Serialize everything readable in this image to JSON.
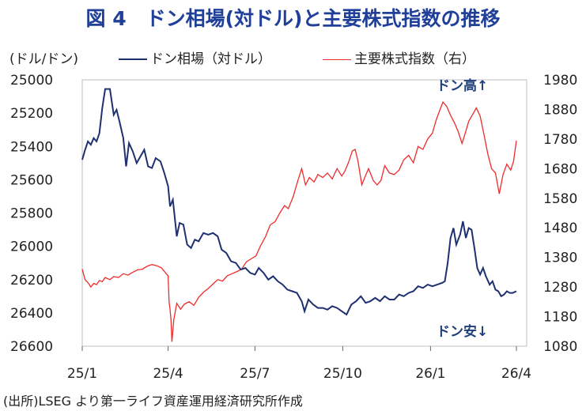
{
  "title": "図 4　ドン相場(対ドル)と主要株式指数の推移",
  "source": "(出所)LSEG より第一ライフ資産運用経済研究所作成",
  "chart_data": {
    "type": "line",
    "left_unit": "(ドル/ドン)",
    "x_ticks": [
      "25/1",
      "25/4",
      "25/7",
      "25/10",
      "26/1",
      "26/4"
    ],
    "left_axis": {
      "ticks": [
        25000,
        25200,
        25400,
        25600,
        25800,
        26000,
        26200,
        26400,
        26600
      ],
      "range": [
        25000,
        26600
      ],
      "inverted": true
    },
    "right_axis": {
      "ticks": [
        1980,
        1880,
        1780,
        1680,
        1580,
        1480,
        1380,
        1280,
        1180,
        1080
      ],
      "range": [
        1080,
        1980
      ]
    },
    "annotations": {
      "top": "ドン高↑",
      "bottom": "ドン安↓"
    },
    "colors": {
      "dong": "#1f3070",
      "index": "#ee2b2b"
    },
    "series": [
      {
        "name": "ドン相場（対ドル）",
        "axis": "left",
        "points": [
          [
            "2025-01-01",
            25480
          ],
          [
            "2025-01-04",
            25420
          ],
          [
            "2025-01-07",
            25370
          ],
          [
            "2025-01-10",
            25390
          ],
          [
            "2025-01-13",
            25350
          ],
          [
            "2025-01-16",
            25370
          ],
          [
            "2025-01-19",
            25320
          ],
          [
            "2025-01-22",
            25170
          ],
          [
            "2025-01-25",
            25055
          ],
          [
            "2025-01-30",
            25055
          ],
          [
            "2025-02-03",
            25210
          ],
          [
            "2025-02-06",
            25180
          ],
          [
            "2025-02-09",
            25250
          ],
          [
            "2025-02-13",
            25350
          ],
          [
            "2025-02-16",
            25520
          ],
          [
            "2025-02-19",
            25380
          ],
          [
            "2025-02-23",
            25430
          ],
          [
            "2025-02-27",
            25500
          ],
          [
            "2025-03-03",
            25460
          ],
          [
            "2025-03-07",
            25420
          ],
          [
            "2025-03-11",
            25520
          ],
          [
            "2025-03-15",
            25530
          ],
          [
            "2025-03-19",
            25470
          ],
          [
            "2025-03-24",
            25490
          ],
          [
            "2025-03-28",
            25560
          ],
          [
            "2025-04-01",
            25640
          ],
          [
            "2025-04-03",
            25760
          ],
          [
            "2025-04-06",
            25720
          ],
          [
            "2025-04-10",
            25940
          ],
          [
            "2025-04-13",
            25860
          ],
          [
            "2025-04-17",
            25870
          ],
          [
            "2025-04-21",
            25990
          ],
          [
            "2025-04-25",
            26010
          ],
          [
            "2025-04-29",
            25960
          ],
          [
            "2025-05-03",
            25970
          ],
          [
            "2025-05-08",
            25920
          ],
          [
            "2025-05-13",
            25930
          ],
          [
            "2025-05-18",
            25920
          ],
          [
            "2025-05-23",
            25940
          ],
          [
            "2025-05-27",
            26020
          ],
          [
            "2025-06-01",
            26040
          ],
          [
            "2025-06-06",
            26090
          ],
          [
            "2025-06-11",
            26100
          ],
          [
            "2025-06-16",
            26140
          ],
          [
            "2025-06-21",
            26130
          ],
          [
            "2025-06-26",
            26160
          ],
          [
            "2025-07-01",
            26170
          ],
          [
            "2025-07-05",
            26130
          ],
          [
            "2025-07-10",
            26160
          ],
          [
            "2025-07-15",
            26200
          ],
          [
            "2025-07-20",
            26180
          ],
          [
            "2025-07-25",
            26210
          ],
          [
            "2025-07-30",
            26230
          ],
          [
            "2025-08-04",
            26260
          ],
          [
            "2025-08-09",
            26270
          ],
          [
            "2025-08-14",
            26280
          ],
          [
            "2025-08-19",
            26330
          ],
          [
            "2025-08-22",
            26390
          ],
          [
            "2025-08-26",
            26320
          ],
          [
            "2025-08-31",
            26350
          ],
          [
            "2025-09-05",
            26370
          ],
          [
            "2025-09-10",
            26370
          ],
          [
            "2025-09-15",
            26380
          ],
          [
            "2025-09-20",
            26360
          ],
          [
            "2025-09-25",
            26370
          ],
          [
            "2025-09-30",
            26390
          ],
          [
            "2025-10-05",
            26410
          ],
          [
            "2025-10-10",
            26350
          ],
          [
            "2025-10-15",
            26330
          ],
          [
            "2025-10-20",
            26300
          ],
          [
            "2025-10-25",
            26340
          ],
          [
            "2025-10-30",
            26330
          ],
          [
            "2025-11-04",
            26310
          ],
          [
            "2025-11-09",
            26330
          ],
          [
            "2025-11-14",
            26300
          ],
          [
            "2025-11-19",
            26320
          ],
          [
            "2025-11-24",
            26320
          ],
          [
            "2025-11-29",
            26290
          ],
          [
            "2025-12-04",
            26300
          ],
          [
            "2025-12-09",
            26280
          ],
          [
            "2025-12-14",
            26270
          ],
          [
            "2025-12-19",
            26240
          ],
          [
            "2025-12-24",
            26250
          ],
          [
            "2025-12-29",
            26230
          ],
          [
            "2026-01-03",
            26240
          ],
          [
            "2026-01-08",
            26230
          ],
          [
            "2026-01-13",
            26220
          ],
          [
            "2026-01-16",
            26210
          ],
          [
            "2026-01-19",
            26100
          ],
          [
            "2026-01-22",
            25950
          ],
          [
            "2026-01-25",
            25890
          ],
          [
            "2026-01-28",
            25990
          ],
          [
            "2026-02-01",
            25930
          ],
          [
            "2026-02-04",
            25850
          ],
          [
            "2026-02-07",
            25950
          ],
          [
            "2026-02-10",
            25890
          ],
          [
            "2026-02-13",
            25900
          ],
          [
            "2026-02-16",
            26010
          ],
          [
            "2026-02-19",
            26130
          ],
          [
            "2026-02-22",
            26170
          ],
          [
            "2026-02-25",
            26130
          ],
          [
            "2026-02-28",
            26180
          ],
          [
            "2026-03-04",
            26230
          ],
          [
            "2026-03-07",
            26210
          ],
          [
            "2026-03-10",
            26260
          ],
          [
            "2026-03-13",
            26270
          ],
          [
            "2026-03-16",
            26300
          ],
          [
            "2026-03-19",
            26290
          ],
          [
            "2026-03-22",
            26270
          ],
          [
            "2026-03-25",
            26280
          ],
          [
            "2026-03-28",
            26280
          ],
          [
            "2026-04-01",
            26270
          ]
        ]
      },
      {
        "name": "主要株式指数（右）",
        "axis": "right",
        "points": [
          [
            "2025-01-01",
            1340
          ],
          [
            "2025-01-04",
            1305
          ],
          [
            "2025-01-07",
            1295
          ],
          [
            "2025-01-10",
            1280
          ],
          [
            "2025-01-13",
            1292
          ],
          [
            "2025-01-16",
            1288
          ],
          [
            "2025-01-19",
            1302
          ],
          [
            "2025-01-22",
            1298
          ],
          [
            "2025-01-25",
            1312
          ],
          [
            "2025-01-30",
            1305
          ],
          [
            "2025-02-03",
            1315
          ],
          [
            "2025-02-08",
            1312
          ],
          [
            "2025-02-13",
            1325
          ],
          [
            "2025-02-18",
            1320
          ],
          [
            "2025-02-23",
            1330
          ],
          [
            "2025-02-28",
            1338
          ],
          [
            "2025-03-05",
            1340
          ],
          [
            "2025-03-10",
            1350
          ],
          [
            "2025-03-15",
            1356
          ],
          [
            "2025-03-20",
            1352
          ],
          [
            "2025-03-25",
            1345
          ],
          [
            "2025-03-30",
            1325
          ],
          [
            "2025-04-01",
            1318
          ],
          [
            "2025-04-02",
            1230
          ],
          [
            "2025-04-03",
            1205
          ],
          [
            "2025-04-04",
            1170
          ],
          [
            "2025-04-05",
            1095
          ],
          [
            "2025-04-07",
            1170
          ],
          [
            "2025-04-10",
            1225
          ],
          [
            "2025-04-14",
            1205
          ],
          [
            "2025-04-18",
            1222
          ],
          [
            "2025-04-23",
            1230
          ],
          [
            "2025-04-28",
            1218
          ],
          [
            "2025-05-03",
            1245
          ],
          [
            "2025-05-08",
            1262
          ],
          [
            "2025-05-13",
            1275
          ],
          [
            "2025-05-18",
            1290
          ],
          [
            "2025-05-23",
            1305
          ],
          [
            "2025-05-28",
            1300
          ],
          [
            "2025-06-02",
            1318
          ],
          [
            "2025-06-07",
            1325
          ],
          [
            "2025-06-12",
            1332
          ],
          [
            "2025-06-17",
            1340
          ],
          [
            "2025-06-22",
            1365
          ],
          [
            "2025-06-27",
            1375
          ],
          [
            "2025-07-02",
            1385
          ],
          [
            "2025-07-07",
            1420
          ],
          [
            "2025-07-12",
            1450
          ],
          [
            "2025-07-17",
            1490
          ],
          [
            "2025-07-22",
            1500
          ],
          [
            "2025-07-27",
            1530
          ],
          [
            "2025-08-01",
            1555
          ],
          [
            "2025-08-05",
            1545
          ],
          [
            "2025-08-10",
            1585
          ],
          [
            "2025-08-15",
            1640
          ],
          [
            "2025-08-19",
            1680
          ],
          [
            "2025-08-23",
            1625
          ],
          [
            "2025-08-27",
            1650
          ],
          [
            "2025-09-01",
            1635
          ],
          [
            "2025-09-05",
            1660
          ],
          [
            "2025-09-10",
            1650
          ],
          [
            "2025-09-15",
            1665
          ],
          [
            "2025-09-20",
            1645
          ],
          [
            "2025-09-25",
            1680
          ],
          [
            "2025-09-30",
            1655
          ],
          [
            "2025-10-03",
            1670
          ],
          [
            "2025-10-07",
            1700
          ],
          [
            "2025-10-11",
            1740
          ],
          [
            "2025-10-14",
            1745
          ],
          [
            "2025-10-17",
            1705
          ],
          [
            "2025-10-21",
            1625
          ],
          [
            "2025-10-24",
            1650
          ],
          [
            "2025-10-28",
            1680
          ],
          [
            "2025-11-02",
            1640
          ],
          [
            "2025-11-06",
            1625
          ],
          [
            "2025-11-10",
            1640
          ],
          [
            "2025-11-14",
            1690
          ],
          [
            "2025-11-19",
            1665
          ],
          [
            "2025-11-24",
            1660
          ],
          [
            "2025-11-29",
            1675
          ],
          [
            "2025-12-04",
            1710
          ],
          [
            "2025-12-09",
            1725
          ],
          [
            "2025-12-14",
            1700
          ],
          [
            "2025-12-19",
            1755
          ],
          [
            "2025-12-24",
            1745
          ],
          [
            "2025-12-29",
            1780
          ],
          [
            "2026-01-03",
            1800
          ],
          [
            "2026-01-07",
            1845
          ],
          [
            "2026-01-11",
            1880
          ],
          [
            "2026-01-14",
            1905
          ],
          [
            "2026-01-18",
            1890
          ],
          [
            "2026-01-22",
            1860
          ],
          [
            "2026-01-26",
            1835
          ],
          [
            "2026-01-30",
            1805
          ],
          [
            "2026-02-03",
            1765
          ],
          [
            "2026-02-06",
            1795
          ],
          [
            "2026-02-10",
            1840
          ],
          [
            "2026-02-14",
            1862
          ],
          [
            "2026-02-18",
            1885
          ],
          [
            "2026-02-22",
            1858
          ],
          [
            "2026-02-26",
            1795
          ],
          [
            "2026-03-02",
            1730
          ],
          [
            "2026-03-06",
            1680
          ],
          [
            "2026-03-10",
            1665
          ],
          [
            "2026-03-14",
            1595
          ],
          [
            "2026-03-18",
            1660
          ],
          [
            "2026-03-22",
            1695
          ],
          [
            "2026-03-26",
            1675
          ],
          [
            "2026-03-29",
            1705
          ],
          [
            "2026-04-01",
            1775
          ]
        ]
      }
    ]
  }
}
